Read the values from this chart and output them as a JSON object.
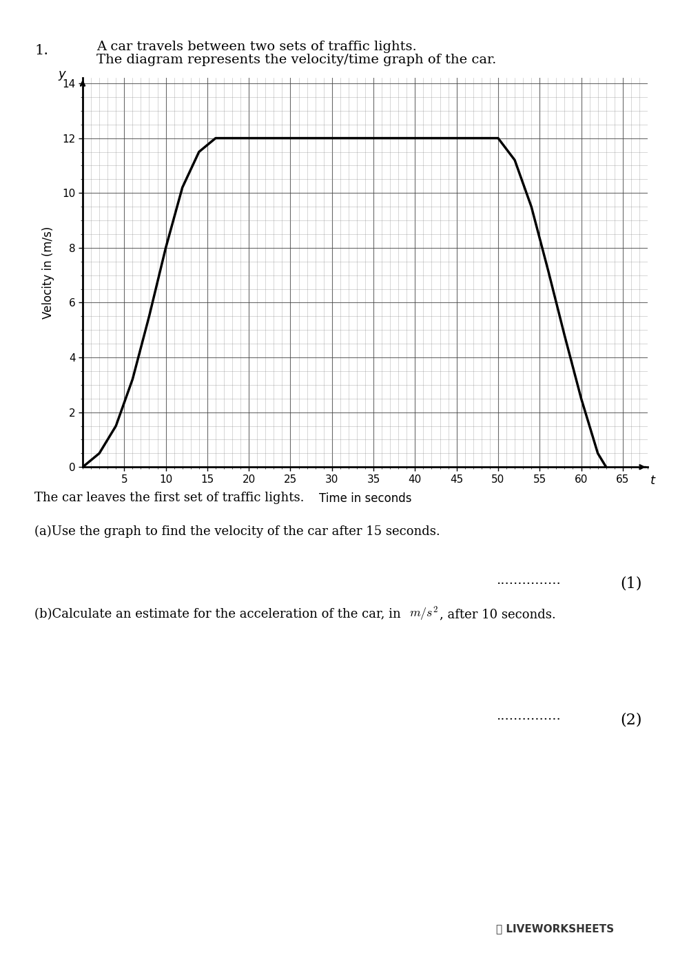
{
  "question_number": "1.",
  "question_text_line1": "A car travels between two sets of traffic lights.",
  "question_text_line2": "The diagram represents the velocity/time graph of the car.",
  "graph_curve_x": [
    0,
    2,
    4,
    6,
    8,
    10,
    12,
    14,
    16,
    18,
    20,
    25,
    30,
    35,
    40,
    45,
    50,
    52,
    54,
    56,
    58,
    60,
    62,
    63
  ],
  "graph_curve_y": [
    0,
    0.5,
    1.5,
    3.2,
    5.5,
    8.0,
    10.2,
    11.5,
    12.0,
    12.0,
    12.0,
    12.0,
    12.0,
    12.0,
    12.0,
    12.0,
    12.0,
    11.2,
    9.5,
    7.2,
    4.8,
    2.5,
    0.5,
    0.0
  ],
  "x_label": "Time in seconds",
  "y_label": "Velocity in (m/s)",
  "x_axis_label_t": "t",
  "y_axis_label_y": "y",
  "x_min": 0,
  "x_max": 68,
  "y_min": 0,
  "y_max": 14,
  "x_major_ticks": [
    5,
    10,
    15,
    20,
    25,
    30,
    35,
    40,
    45,
    50,
    55,
    60,
    65
  ],
  "y_major_ticks": [
    0,
    2,
    4,
    6,
    8,
    10,
    12,
    14
  ],
  "x_minor_ticks": 1,
  "y_minor_ticks": 0.5,
  "grid_color": "#888888",
  "grid_major_color": "#444444",
  "line_color": "#000000",
  "line_width": 2.5,
  "background_color": "#ffffff",
  "text_color": "#000000",
  "text1": "The car leaves the first set of traffic lights.",
  "text2a": "(a)Use the graph to find the velocity of the car after 15 seconds.",
  "text2b": "(b)Calculate an estimate for the acceleration of the car, in ",
  "text2b_math": "m/s",
  "text2b_end": ", after 10 seconds.",
  "answer_dots_1": "...............",
  "answer_mark_1": "(1)",
  "answer_dots_2": "...............",
  "answer_mark_2": "(2)",
  "liveworksheets_logo": "LIVEWORKSHEETS",
  "font_size_question": 14,
  "font_size_text": 13,
  "font_size_axis_label": 12,
  "font_size_tick": 11
}
